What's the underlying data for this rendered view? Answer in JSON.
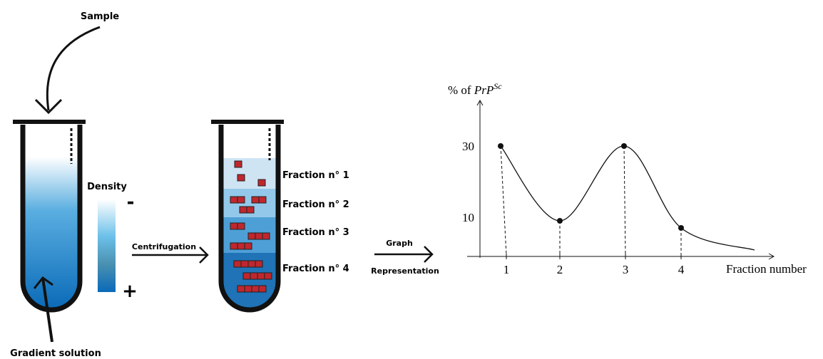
{
  "labels": {
    "sample": "Sample",
    "gradient": "Gradient solution",
    "density": "Density",
    "minus": "-",
    "plus": "+",
    "centrifugation": "Centrifugation",
    "graph": "Graph",
    "representation": "Representation"
  },
  "fractions": [
    "Fraction n° 1",
    "Fraction n° 2",
    "Fraction n° 3",
    "Fraction n° 4"
  ],
  "graph": {
    "y_label_prefix": "% of ",
    "y_label_var": "PrP",
    "y_label_sup": "Sc",
    "x_label": "Fraction number",
    "yticks": [
      10,
      30
    ],
    "xticks": [
      1,
      2,
      3,
      4
    ],
    "values": [
      30,
      9,
      30,
      7
    ]
  }
}
